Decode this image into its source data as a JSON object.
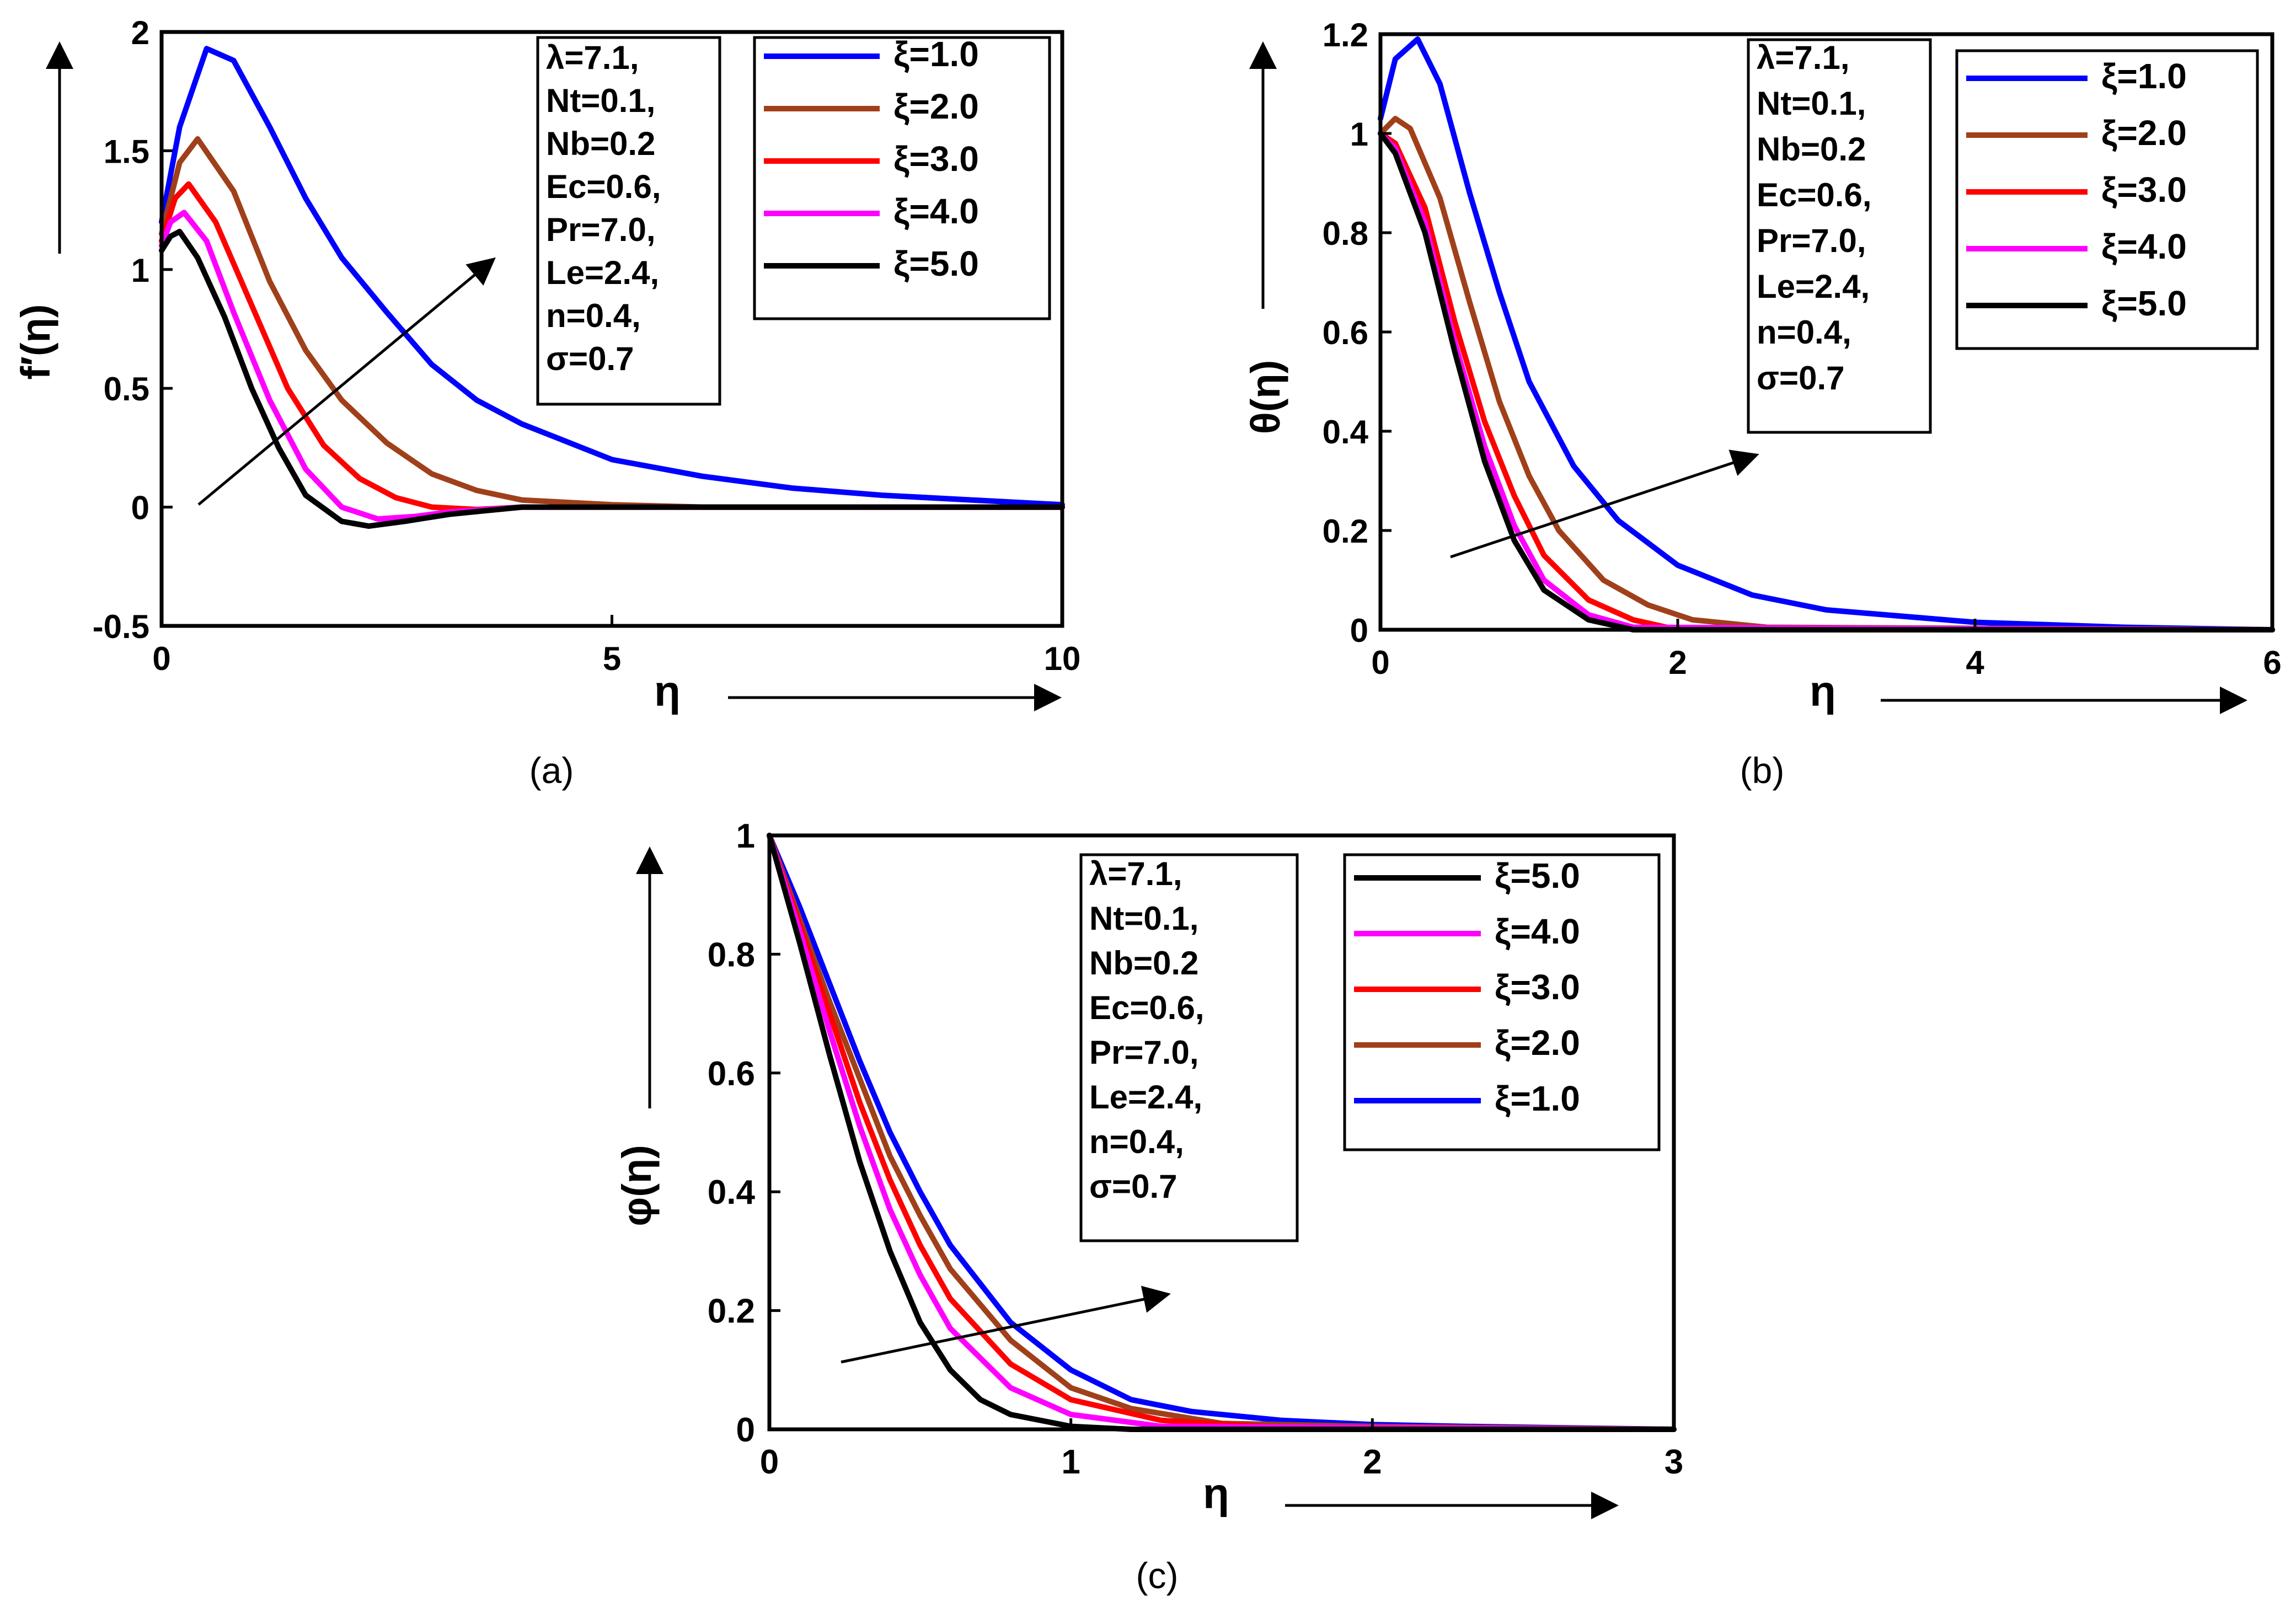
{
  "figure": {
    "panels": [
      {
        "label": "(a)",
        "label_letter": "a"
      },
      {
        "label": "(b)",
        "label_letter": "b"
      },
      {
        "label": "(c)",
        "label_letter": "c"
      }
    ]
  },
  "colors": {
    "xi_1": "#0000ff",
    "xi_2": "#a0401a",
    "xi_3": "#ff0000",
    "xi_4": "#ff00ff",
    "xi_5": "#000000"
  },
  "chart_data": [
    {
      "id": "a",
      "type": "line",
      "title": "",
      "xlabel": "η",
      "ylabel": "f′(η)",
      "xlim": [
        0,
        10
      ],
      "ylim": [
        -0.5,
        2
      ],
      "xticks": [
        "0",
        "5",
        "10"
      ],
      "yticks": [
        "-0.5",
        "0",
        "0.5",
        "1",
        "1.5",
        "2"
      ],
      "params": [
        "λ=7.1,",
        "Nt=0.1,",
        "Nb=0.2",
        "Ec=0.6,",
        "Pr=7.0,",
        "Le=2.4,",
        "n=0.4,",
        "σ=0.7"
      ],
      "legend": [
        "ξ=1.0",
        "ξ=2.0",
        "ξ=3.0",
        "ξ=4.0",
        "ξ=5.0"
      ],
      "legend_order": [
        0,
        1,
        2,
        3,
        4
      ],
      "series": [
        {
          "name": "ξ=1.0",
          "x": [
            0,
            0.2,
            0.5,
            0.8,
            1.2,
            1.6,
            2,
            2.5,
            3,
            3.5,
            4,
            5,
            6,
            7,
            8,
            9,
            10
          ],
          "y": [
            1.2,
            1.6,
            1.93,
            1.88,
            1.6,
            1.3,
            1.05,
            0.82,
            0.6,
            0.45,
            0.35,
            0.2,
            0.13,
            0.08,
            0.05,
            0.03,
            0.01
          ]
        },
        {
          "name": "ξ=2.0",
          "x": [
            0,
            0.2,
            0.4,
            0.8,
            1.2,
            1.6,
            2,
            2.5,
            3,
            3.5,
            4,
            4.5,
            5,
            6,
            10
          ],
          "y": [
            1.15,
            1.45,
            1.55,
            1.33,
            0.95,
            0.66,
            0.45,
            0.27,
            0.14,
            0.07,
            0.03,
            0.02,
            0.01,
            0.0,
            0.0
          ]
        },
        {
          "name": "ξ=3.0",
          "x": [
            0,
            0.15,
            0.3,
            0.6,
            1,
            1.4,
            1.8,
            2.2,
            2.6,
            3,
            3.5,
            4,
            5,
            10
          ],
          "y": [
            1.12,
            1.3,
            1.36,
            1.2,
            0.85,
            0.5,
            0.26,
            0.12,
            0.04,
            0.0,
            -0.01,
            0.0,
            0.0,
            0.0
          ]
        },
        {
          "name": "ξ=4.0",
          "x": [
            0,
            0.1,
            0.25,
            0.5,
            0.8,
            1.2,
            1.6,
            2,
            2.4,
            2.8,
            3.2,
            4,
            5,
            10
          ],
          "y": [
            1.1,
            1.2,
            1.24,
            1.12,
            0.82,
            0.45,
            0.16,
            0.0,
            -0.05,
            -0.04,
            -0.02,
            0.0,
            0.0,
            0.0
          ]
        },
        {
          "name": "ξ=5.0",
          "x": [
            0,
            0.1,
            0.2,
            0.4,
            0.7,
            1,
            1.3,
            1.6,
            2,
            2.3,
            2.7,
            3.2,
            4,
            5,
            10
          ],
          "y": [
            1.08,
            1.14,
            1.16,
            1.05,
            0.8,
            0.5,
            0.25,
            0.05,
            -0.06,
            -0.08,
            -0.06,
            -0.03,
            0.0,
            0.0,
            0.0
          ]
        }
      ]
    },
    {
      "id": "b",
      "type": "line",
      "title": "",
      "xlabel": "η",
      "ylabel": "θ(η)",
      "xlim": [
        0,
        6
      ],
      "ylim": [
        0,
        1.2
      ],
      "xticks": [
        "0",
        "2",
        "4",
        "6"
      ],
      "yticks": [
        "0",
        "0.2",
        "0.4",
        "0.6",
        "0.8",
        "1",
        "1.2"
      ],
      "params": [
        "λ=7.1,",
        "Nt=0.1,",
        "Nb=0.2",
        "Ec=0.6,",
        "Pr=7.0,",
        "Le=2.4,",
        "n=0.4,",
        "σ=0.7"
      ],
      "legend": [
        "ξ=1.0",
        "ξ=2.0",
        "ξ=3.0",
        "ξ=4.0",
        "ξ=5.0"
      ],
      "legend_order": [
        0,
        1,
        2,
        3,
        4
      ],
      "series": [
        {
          "name": "ξ=1.0",
          "x": [
            0,
            0.1,
            0.25,
            0.4,
            0.6,
            0.8,
            1,
            1.3,
            1.6,
            2,
            2.5,
            3,
            4,
            5,
            6
          ],
          "y": [
            1.03,
            1.15,
            1.19,
            1.1,
            0.88,
            0.68,
            0.5,
            0.33,
            0.22,
            0.13,
            0.07,
            0.04,
            0.015,
            0.005,
            0.0
          ]
        },
        {
          "name": "ξ=2.0",
          "x": [
            0,
            0.1,
            0.2,
            0.4,
            0.6,
            0.8,
            1,
            1.2,
            1.5,
            1.8,
            2.1,
            2.6,
            6
          ],
          "y": [
            1.0,
            1.03,
            1.01,
            0.87,
            0.66,
            0.46,
            0.31,
            0.2,
            0.1,
            0.05,
            0.02,
            0.005,
            0.0
          ]
        },
        {
          "name": "ξ=3.0",
          "x": [
            0,
            0.1,
            0.3,
            0.5,
            0.7,
            0.9,
            1.1,
            1.4,
            1.7,
            2,
            6
          ],
          "y": [
            1.0,
            0.98,
            0.85,
            0.62,
            0.42,
            0.27,
            0.15,
            0.06,
            0.02,
            0.0,
            0.0
          ]
        },
        {
          "name": "ξ=4.0",
          "x": [
            0,
            0.1,
            0.3,
            0.5,
            0.7,
            0.9,
            1.1,
            1.4,
            1.7,
            6
          ],
          "y": [
            1.0,
            0.97,
            0.82,
            0.58,
            0.37,
            0.21,
            0.1,
            0.03,
            0.005,
            0.0
          ]
        },
        {
          "name": "ξ=5.0",
          "x": [
            0,
            0.1,
            0.3,
            0.5,
            0.7,
            0.9,
            1.1,
            1.4,
            1.7,
            6
          ],
          "y": [
            1.0,
            0.96,
            0.8,
            0.56,
            0.34,
            0.18,
            0.08,
            0.02,
            0.0,
            0.0
          ]
        }
      ]
    },
    {
      "id": "c",
      "type": "line",
      "title": "",
      "xlabel": "η",
      "ylabel": "φ(η)",
      "xlim": [
        0,
        3
      ],
      "ylim": [
        0,
        1
      ],
      "xticks": [
        "0",
        "1",
        "2",
        "3"
      ],
      "yticks": [
        "0",
        "0.2",
        "0.4",
        "0.6",
        "0.8",
        "1"
      ],
      "params": [
        "λ=7.1,",
        "Nt=0.1,",
        "Nb=0.2",
        "Ec=0.6,",
        "Pr=7.0,",
        "Le=2.4,",
        "n=0.4,",
        "σ=0.7"
      ],
      "legend": [
        "ξ=5.0",
        "ξ=4.0",
        "ξ=3.0",
        "ξ=2.0",
        "ξ=1.0"
      ],
      "legend_order": [
        4,
        3,
        2,
        1,
        0
      ],
      "series": [
        {
          "name": "ξ=1.0",
          "x": [
            0,
            0.1,
            0.2,
            0.3,
            0.4,
            0.5,
            0.6,
            0.8,
            1,
            1.2,
            1.4,
            1.7,
            2,
            2.3,
            3
          ],
          "y": [
            1.0,
            0.88,
            0.75,
            0.62,
            0.5,
            0.4,
            0.31,
            0.18,
            0.1,
            0.05,
            0.03,
            0.015,
            0.008,
            0.005,
            0.0
          ]
        },
        {
          "name": "ξ=2.0",
          "x": [
            0,
            0.1,
            0.2,
            0.3,
            0.4,
            0.5,
            0.6,
            0.8,
            1,
            1.2,
            1.5,
            2,
            3
          ],
          "y": [
            1.0,
            0.86,
            0.72,
            0.59,
            0.46,
            0.36,
            0.27,
            0.15,
            0.07,
            0.035,
            0.01,
            0.005,
            0.0
          ]
        },
        {
          "name": "ξ=3.0",
          "x": [
            0,
            0.1,
            0.2,
            0.3,
            0.4,
            0.5,
            0.6,
            0.8,
            1,
            1.3,
            1.7,
            3
          ],
          "y": [
            1.0,
            0.85,
            0.7,
            0.55,
            0.42,
            0.31,
            0.22,
            0.11,
            0.05,
            0.015,
            0.003,
            0.0
          ]
        },
        {
          "name": "ξ=4.0",
          "x": [
            0,
            0.1,
            0.2,
            0.3,
            0.4,
            0.5,
            0.6,
            0.8,
            1,
            1.3,
            3
          ],
          "y": [
            1.0,
            0.84,
            0.67,
            0.51,
            0.37,
            0.26,
            0.17,
            0.07,
            0.025,
            0.005,
            0.0
          ]
        },
        {
          "name": "ξ=5.0",
          "x": [
            0,
            0.1,
            0.2,
            0.3,
            0.4,
            0.5,
            0.6,
            0.7,
            0.8,
            1,
            1.2,
            3
          ],
          "y": [
            1.0,
            0.82,
            0.63,
            0.45,
            0.3,
            0.18,
            0.1,
            0.05,
            0.025,
            0.005,
            0.0,
            0.0
          ]
        }
      ]
    }
  ]
}
